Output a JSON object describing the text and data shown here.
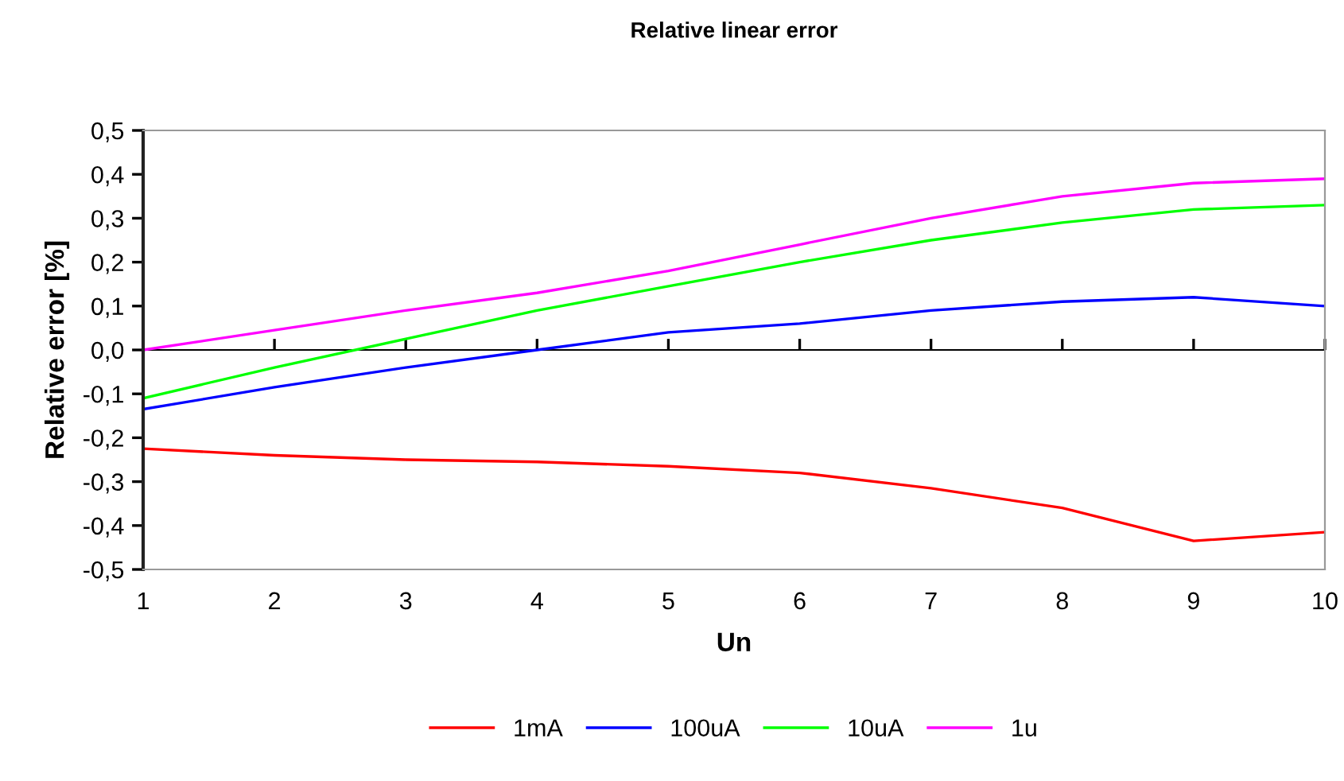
{
  "chart_data": {
    "type": "line",
    "title": "Relative linear error",
    "xlabel": "Un",
    "ylabel": "Relative error [%]",
    "x": [
      1,
      2,
      3,
      4,
      5,
      6,
      7,
      8,
      9,
      10
    ],
    "series": [
      {
        "name": "1mA",
        "color": "#ff0000",
        "values": [
          -0.225,
          -0.24,
          -0.25,
          -0.255,
          -0.265,
          -0.28,
          -0.315,
          -0.36,
          -0.435,
          -0.415
        ]
      },
      {
        "name": "100uA",
        "color": "#0000ff",
        "values": [
          -0.135,
          -0.085,
          -0.04,
          0.0,
          0.04,
          0.06,
          0.09,
          0.11,
          0.12,
          0.1
        ]
      },
      {
        "name": "10uA",
        "color": "#00ff00",
        "values": [
          -0.11,
          -0.04,
          0.025,
          0.09,
          0.145,
          0.2,
          0.25,
          0.29,
          0.32,
          0.33
        ]
      },
      {
        "name": "1u",
        "color": "#ff00ff",
        "values": [
          0.0,
          0.045,
          0.09,
          0.13,
          0.18,
          0.24,
          0.3,
          0.35,
          0.38,
          0.39
        ]
      }
    ],
    "xlim": [
      1,
      10
    ],
    "xticks": [
      1,
      2,
      3,
      4,
      5,
      6,
      7,
      8,
      9,
      10
    ],
    "ylim": [
      -0.5,
      0.5
    ],
    "yticks": [
      {
        "value": -0.5,
        "label": "-0,5"
      },
      {
        "value": -0.4,
        "label": "-0,4"
      },
      {
        "value": -0.3,
        "label": "-0,3"
      },
      {
        "value": -0.2,
        "label": "-0,2"
      },
      {
        "value": -0.1,
        "label": "-0,1"
      },
      {
        "value": 0.0,
        "label": "0,0"
      },
      {
        "value": 0.1,
        "label": "0,1"
      },
      {
        "value": 0.2,
        "label": "0,2"
      },
      {
        "value": 0.3,
        "label": "0,3"
      },
      {
        "value": 0.4,
        "label": "0,4"
      },
      {
        "value": 0.5,
        "label": "0,5"
      }
    ],
    "legend": "bottom",
    "marker": "none",
    "line_style": "solid"
  }
}
